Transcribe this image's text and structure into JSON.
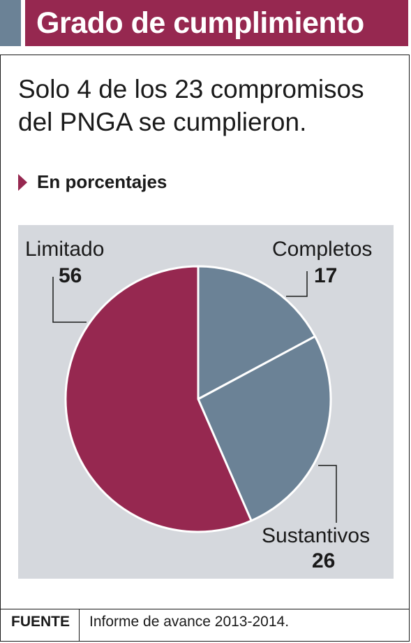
{
  "header": {
    "title": "Grado de cumplimiento"
  },
  "headline": "Solo 4 de los 23 compromisos del PNGA se cumplieron.",
  "subhead": "En porcentajes",
  "colors": {
    "accent": "#962850",
    "slate": "#6b8296",
    "panel": "#d5d8dd"
  },
  "chart_data": {
    "type": "pie",
    "categories": [
      "Completos",
      "Sustantivos",
      "Limitado"
    ],
    "values": [
      17,
      26,
      56
    ],
    "colors": [
      "#6b8296",
      "#6b8296",
      "#962850"
    ],
    "unit": "%"
  },
  "labels": {
    "completos": {
      "name": "Completos",
      "value": "17"
    },
    "sustantivos": {
      "name": "Sustantivos",
      "value": "26"
    },
    "limitado": {
      "name": "Limitado",
      "value": "56"
    }
  },
  "footer": {
    "label": "FUENTE",
    "text": "Informe de avance 2013-2014."
  }
}
